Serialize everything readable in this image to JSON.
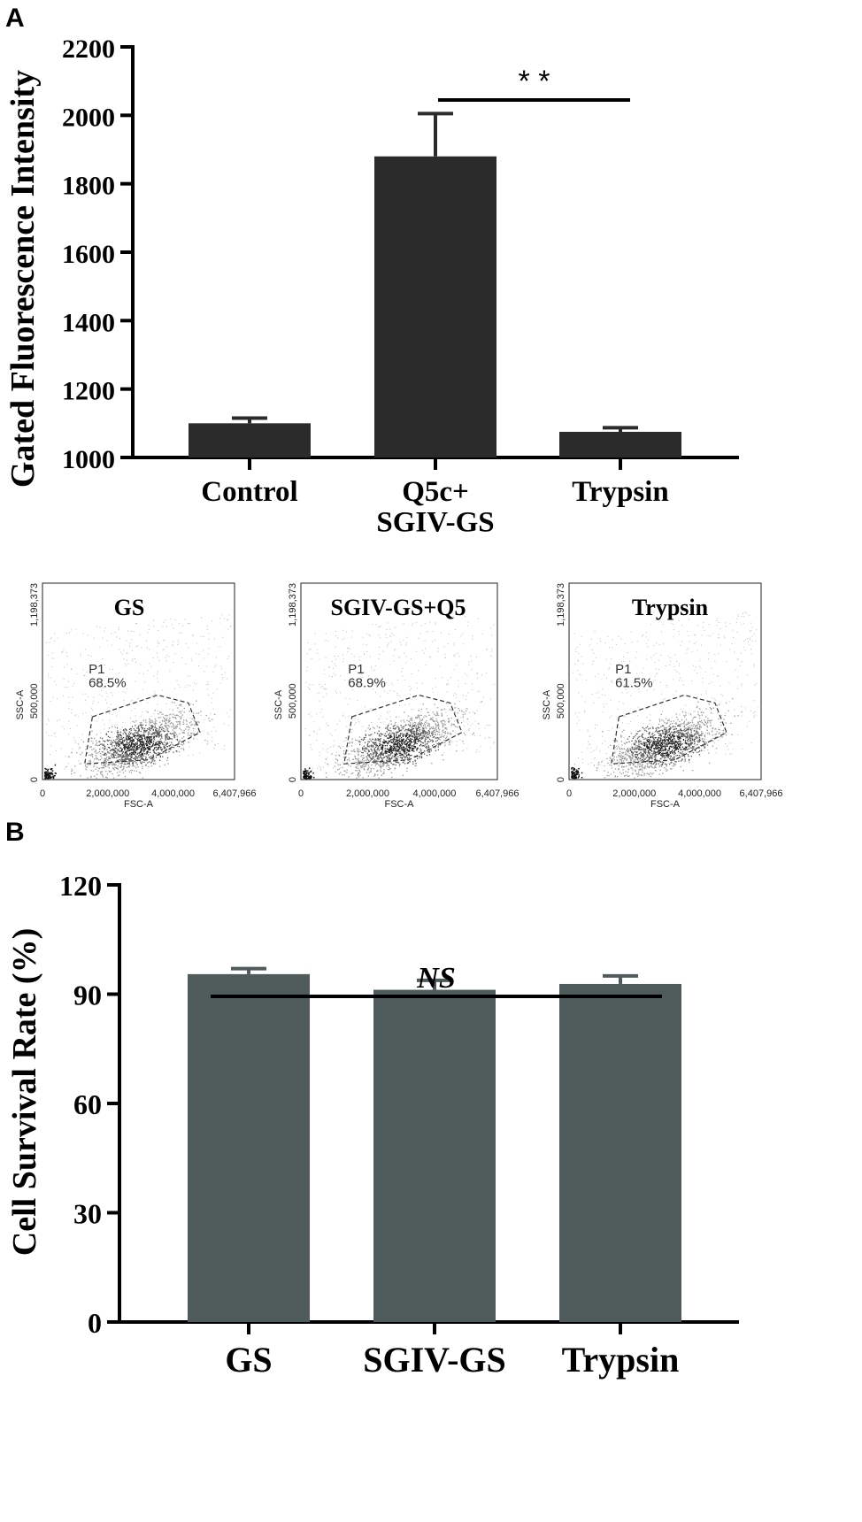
{
  "figure": {
    "panel_a_label": "A",
    "panel_b_label": "B"
  },
  "chart_data": [
    {
      "type": "bar",
      "panel": "A",
      "title": "",
      "xlabel": "",
      "ylabel": "Gated Fluorescence Intensity",
      "categories": [
        "Control",
        "Q5c+\nSGIV-GS",
        "Trypsin"
      ],
      "values": [
        1100,
        1880,
        1075
      ],
      "errors": [
        15,
        125,
        12
      ],
      "ylim": [
        1000,
        2200
      ],
      "yticks": [
        1000,
        1200,
        1400,
        1600,
        1800,
        2000,
        2200
      ],
      "bar_color": "#2b2b2b",
      "annotation": {
        "text": "* *",
        "from_category": 1,
        "to_category": 2
      }
    },
    {
      "type": "scatter",
      "panel": "A",
      "subtype": "flow-cytometry",
      "panels": [
        {
          "title": "GS",
          "gate_name": "P1",
          "gate_percent": "68.5%"
        },
        {
          "title": "SGIV-GS+Q5",
          "gate_name": "P1",
          "gate_percent": "68.9%"
        },
        {
          "title": "Trypsin",
          "gate_name": "P1",
          "gate_percent": "61.5%"
        }
      ],
      "xlabel": "FSC-A",
      "ylabel": "SSC-A",
      "xticks": [
        "0",
        "2,000,000",
        "4,000,000",
        "6,407,966"
      ],
      "yticks": [
        "0",
        "500,000",
        "1,198,373"
      ],
      "xlim": [
        0,
        6407966
      ],
      "ylim": [
        0,
        1198373
      ]
    },
    {
      "type": "bar",
      "panel": "B",
      "title": "",
      "xlabel": "",
      "ylabel": "Cell  Survival Rate (%)",
      "categories": [
        "GS",
        "SGIV-GS",
        "Trypsin"
      ],
      "values": [
        95.5,
        91.2,
        92.8
      ],
      "errors": [
        1.5,
        2.6,
        2.2
      ],
      "ylim": [
        0,
        120
      ],
      "yticks": [
        0,
        30,
        60,
        90,
        120
      ],
      "bar_color": "#4f5b5b",
      "annotation": {
        "text": "NS",
        "from_category": 0,
        "to_category": 2
      }
    }
  ]
}
